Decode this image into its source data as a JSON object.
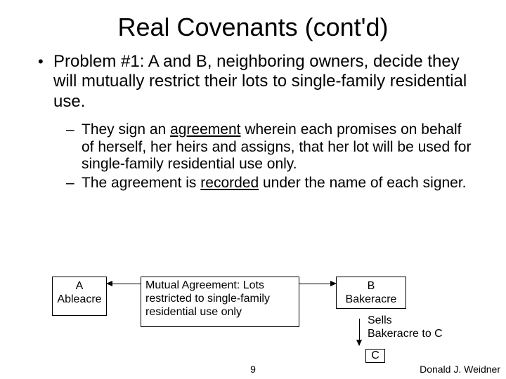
{
  "title": "Real Covenants (cont'd)",
  "bullet": {
    "marker": "•",
    "text": "Problem #1:  A and B, neighboring owners, decide they will mutually restrict their lots to single-family residential use."
  },
  "sub": [
    {
      "marker": "–",
      "pre": "They sign an ",
      "u": "agreement",
      "post": " wherein each promises on behalf of herself, her heirs and assigns, that her lot will be used for single-family residential use only."
    },
    {
      "marker": "–",
      "pre": "The agreement is ",
      "u": "recorded",
      "post": " under the name of each signer."
    }
  ],
  "boxA": {
    "line1": "A",
    "line2": "Ableacre"
  },
  "boxM": "Mutual Agreement: Lots restricted to single-family residential use only",
  "boxB": {
    "line1": "B",
    "line2": "Bakeracre"
  },
  "sell": {
    "line1": "Sells",
    "line2": "Bakeracre to C"
  },
  "boxC": "C",
  "pageNum": "9",
  "author": "Donald J. Weidner"
}
